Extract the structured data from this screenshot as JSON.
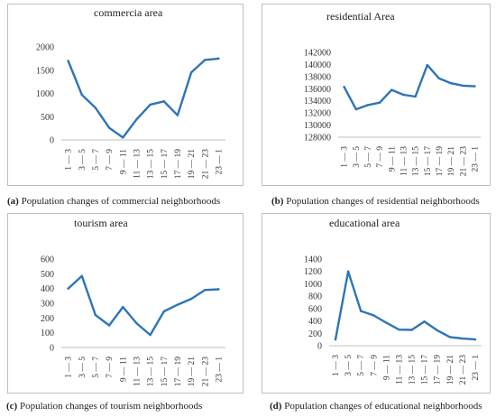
{
  "chart_data": [
    {
      "type": "line",
      "title": "commercia area",
      "categories": [
        "1 — 3",
        "3 — 5",
        "5 — 7",
        "7 — 9",
        "9 — 11",
        "11 — 13",
        "13 — 15",
        "15 — 17",
        "17 — 19",
        "19 — 21",
        "21 — 23",
        "23 — 1"
      ],
      "values": [
        1700,
        970,
        690,
        260,
        50,
        440,
        760,
        830,
        530,
        1450,
        1720,
        1750
      ],
      "ylim": [
        0,
        2000
      ],
      "yticks": [
        0,
        500,
        1000,
        1500,
        2000
      ],
      "grid": false,
      "series_color": "#2e75b6"
    },
    {
      "type": "line",
      "title": "residential Area",
      "categories": [
        "1 — 3",
        "3 — 5",
        "5 — 7",
        "7 — 9",
        "9 — 11",
        "11 — 13",
        "13 — 15",
        "15 — 17",
        "17 — 19",
        "19 — 21",
        "21 — 23",
        "23 — 1"
      ],
      "values": [
        136300,
        132600,
        133300,
        133700,
        135800,
        135000,
        134700,
        139900,
        137700,
        136900,
        136500,
        136400
      ],
      "ylim": [
        128000,
        142000
      ],
      "yticks": [
        128000,
        130000,
        132000,
        134000,
        136000,
        138000,
        140000,
        142000
      ],
      "grid": false,
      "series_color": "#2e75b6"
    },
    {
      "type": "line",
      "title": "tourism area",
      "categories": [
        "1 — 3",
        "3 — 5",
        "5 — 7",
        "7 — 9",
        "9 — 11",
        "11 — 13",
        "13 — 15",
        "15 — 17",
        "17 — 19",
        "19 — 21",
        "21 — 23",
        "23 — 1"
      ],
      "values": [
        400,
        485,
        220,
        150,
        275,
        165,
        85,
        245,
        290,
        330,
        390,
        395
      ],
      "ylim": [
        0,
        600
      ],
      "yticks": [
        0,
        100,
        200,
        300,
        400,
        500,
        600
      ],
      "grid": false,
      "series_color": "#2e75b6"
    },
    {
      "type": "line",
      "title": "educational area",
      "categories": [
        "1 — 3",
        "3 — 5",
        "5 — 7",
        "7 — 9",
        "9 — 11",
        "11 — 13",
        "13 — 15",
        "15 — 17",
        "17 — 19",
        "19 — 21",
        "21 — 23",
        "23 — 1"
      ],
      "values": [
        100,
        1200,
        560,
        490,
        370,
        260,
        255,
        390,
        250,
        140,
        115,
        100
      ],
      "ylim": [
        0,
        1400
      ],
      "yticks": [
        0,
        200,
        400,
        600,
        800,
        1000,
        1200,
        1400
      ],
      "grid": false,
      "series_color": "#2e75b6"
    }
  ],
  "captions": [
    {
      "label": "(a)",
      "text": " Population changes of commercial neighborhoods"
    },
    {
      "label": "(b)",
      "text": " Population changes of residential neighborhoods"
    },
    {
      "label": "(c)",
      "text": " Population changes of tourism neighborhoods"
    },
    {
      "label": "(d)",
      "text": " Population changes of educational neighborhoods"
    }
  ]
}
